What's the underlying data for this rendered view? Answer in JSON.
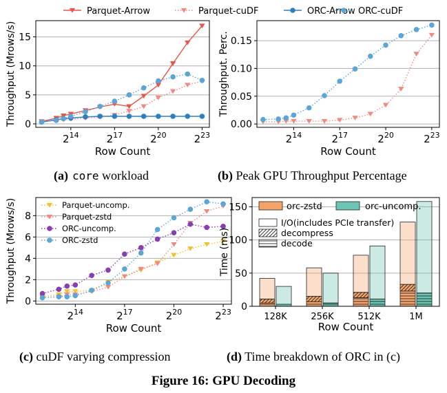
{
  "captions": {
    "a_label": "(a)",
    "a_mono": "core",
    "a_text": " workload",
    "b_label": "(b)",
    "b_text": " Peak GPU Throughput Percentage",
    "c_label": "(c)",
    "c_text": " cuDF varying compression",
    "d_label": "(d)",
    "d_text": " Time breakdown of ORC in (c)"
  },
  "figure_title": "Figure 16: GPU Decoding",
  "colors": {
    "red": "#e8534a",
    "salmon": "#f08a82",
    "blue": "#2f7fbf",
    "lightblue": "#5ba6d6",
    "yellow": "#f2c12e",
    "purple": "#8a3db0",
    "orange": "#f4a46a",
    "teal": "#6cc4b2",
    "grid": "#b0b0b0"
  },
  "chart_data": [
    {
      "id": "a",
      "type": "line",
      "xlabel": "Row Count",
      "ylabel": "Throughput (Mrows/s)",
      "xlim": [
        11.6,
        23.5
      ],
      "ylim": [
        -0.6,
        17.8
      ],
      "xticks": [
        14,
        17,
        20,
        23
      ],
      "xtick_base": "2",
      "yticks": [
        0,
        5,
        10,
        15
      ],
      "ytick_labels": [
        "0",
        "5",
        "10",
        "15"
      ],
      "grid": "y",
      "legend": {
        "placement": "top-outside",
        "entries": [
          "Parquet-Arrow",
          "Parquet-cuDF",
          "ORC-Arrow",
          "ORC-cuDF"
        ]
      },
      "x": [
        12,
        13,
        13.5,
        14,
        15,
        16,
        17,
        18,
        19,
        20,
        21,
        22,
        23
      ],
      "series": [
        {
          "name": "Parquet-Arrow",
          "color": "#e8534a",
          "dash": "solid",
          "marker": "tri-down",
          "values": [
            0.4,
            1.0,
            1.4,
            1.7,
            2.3,
            2.9,
            3.4,
            3.0,
            4.8,
            6.7,
            10.4,
            14.0,
            16.9
          ]
        },
        {
          "name": "Parquet-cuDF",
          "color": "#f08a82",
          "dash": "dotted",
          "marker": "tri-down",
          "values": [
            0.3,
            0.6,
            0.7,
            0.8,
            1.0,
            1.2,
            1.5,
            2.2,
            3.0,
            4.5,
            5.6,
            6.7,
            7.4
          ]
        },
        {
          "name": "ORC-Arrow",
          "color": "#2f7fbf",
          "dash": "solid",
          "marker": "circle",
          "values": [
            0.3,
            0.7,
            0.9,
            1.0,
            1.2,
            1.3,
            1.3,
            1.3,
            1.3,
            1.3,
            1.3,
            1.3,
            1.3
          ]
        },
        {
          "name": "ORC-cuDF",
          "color": "#5ba6d6",
          "dash": "dotted",
          "marker": "circle",
          "values": [
            0.3,
            0.6,
            0.9,
            1.3,
            2.1,
            3.0,
            3.9,
            5.0,
            6.2,
            7.4,
            8.1,
            8.6,
            7.5
          ]
        }
      ]
    },
    {
      "id": "b",
      "type": "line",
      "xlabel": "Row Count",
      "ylabel": "Throughput. Perc.",
      "xlim": [
        11.6,
        23.5
      ],
      "ylim": [
        -0.006,
        0.186
      ],
      "xticks": [
        14,
        17,
        20,
        23
      ],
      "xtick_base": "2",
      "yticks": [
        0,
        0.05,
        0.1,
        0.15
      ],
      "ytick_labels": [
        "0.00",
        "0.05",
        "0.10",
        "0.15"
      ],
      "grid": "y",
      "x": [
        12,
        13,
        13.5,
        14,
        15,
        16,
        17,
        18,
        19,
        20,
        21,
        22,
        23
      ],
      "series": [
        {
          "name": "Parquet-cuDF",
          "color": "#f08a82",
          "dash": "dotted",
          "marker": "tri-down",
          "values": [
            0.004,
            0.004,
            0.005,
            0.005,
            0.005,
            0.005,
            0.007,
            0.011,
            0.018,
            0.034,
            0.063,
            0.126,
            0.16
          ]
        },
        {
          "name": "ORC-cuDF",
          "color": "#5ba6d6",
          "dash": "dotted",
          "marker": "circle",
          "values": [
            0.008,
            0.009,
            0.011,
            0.016,
            0.029,
            0.051,
            0.077,
            0.099,
            0.122,
            0.142,
            0.159,
            0.17,
            0.178
          ]
        }
      ]
    },
    {
      "id": "c",
      "type": "line",
      "xlabel": "Row Count",
      "ylabel": "Throughput (Mrows/s)",
      "xlim": [
        11.6,
        23.5
      ],
      "ylim": [
        -0.3,
        9.7
      ],
      "xticks": [
        14,
        17,
        20,
        23
      ],
      "xtick_base": "2",
      "yticks": [
        0,
        2,
        4,
        6,
        8
      ],
      "ytick_labels": [
        "0",
        "2",
        "4",
        "6",
        "8"
      ],
      "grid": "y",
      "legend": {
        "placement": "top-left",
        "entries": [
          "Parquet-uncomp.",
          "Parquet-zstd",
          "ORC-uncomp.",
          "ORC-zstd"
        ]
      },
      "x": [
        12,
        13,
        13.5,
        14,
        15,
        16,
        17,
        18,
        19,
        20,
        21,
        22,
        23
      ],
      "series": [
        {
          "name": "Parquet-uncomp.",
          "color": "#f2c12e",
          "dash": "dotted",
          "marker": "tri-down",
          "values": [
            0.4,
            0.6,
            0.9,
            0.9,
            1.0,
            1.8,
            2.3,
            2.9,
            3.6,
            4.3,
            4.9,
            5.3,
            5.6
          ]
        },
        {
          "name": "Parquet-zstd",
          "color": "#f08a82",
          "dash": "dotted",
          "marker": "tri-down",
          "values": [
            0.3,
            0.4,
            0.6,
            0.6,
            0.9,
            1.3,
            2.3,
            3.0,
            3.5,
            5.3,
            7.3,
            8.4,
            8.9
          ]
        },
        {
          "name": "ORC-uncomp.",
          "color": "#8a3db0",
          "dash": "dotted",
          "marker": "circle",
          "values": [
            0.7,
            1.1,
            1.4,
            1.5,
            2.4,
            2.9,
            4.4,
            5.0,
            5.8,
            6.4,
            7.2,
            6.9,
            7.0
          ]
        },
        {
          "name": "ORC-zstd",
          "color": "#5ba6d6",
          "dash": "dotted",
          "marker": "circle",
          "values": [
            0.3,
            0.4,
            0.4,
            0.5,
            1.0,
            1.7,
            3.0,
            4.5,
            6.7,
            7.8,
            8.6,
            9.3,
            9.1
          ]
        }
      ]
    },
    {
      "id": "d",
      "type": "bar",
      "xlabel": "Row Count",
      "ylabel": "Time (ms)",
      "categories": [
        "128K",
        "256K",
        "512K",
        "1M"
      ],
      "ylim": [
        0,
        164
      ],
      "yticks": [
        0,
        50,
        100,
        150
      ],
      "ytick_labels": [
        "0",
        "50",
        "100",
        "150"
      ],
      "grid": "y",
      "legend": {
        "placement": "top-left",
        "series_entries": [
          "orc-zstd",
          "orc-uncomp."
        ],
        "component_entries": [
          "I/O(includes PCIe transfer)",
          "decompress",
          "decode"
        ]
      },
      "series": [
        {
          "name": "orc-zstd",
          "color": "#f4a46a",
          "decode": [
            5,
            7,
            13,
            23
          ],
          "decompress": [
            6,
            8,
            8,
            10
          ],
          "io": [
            31,
            43,
            56,
            94
          ]
        },
        {
          "name": "orc-uncomp.",
          "color": "#6cc4b2",
          "decode": [
            3,
            5,
            11,
            20
          ],
          "decompress": [
            0,
            0,
            0,
            0
          ],
          "io": [
            27,
            45,
            80,
            138
          ]
        }
      ]
    }
  ]
}
